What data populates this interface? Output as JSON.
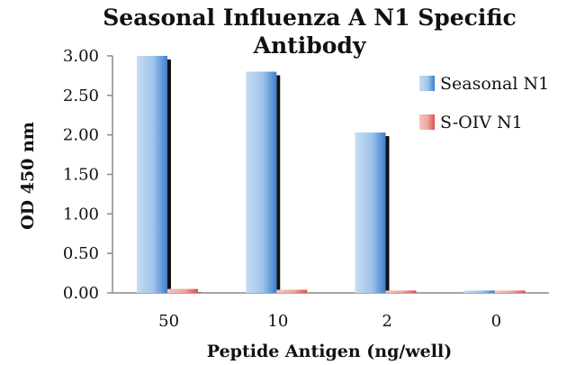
{
  "chart_data": {
    "type": "bar",
    "title": [
      "Seasonal Influenza A N1 Specific",
      "Antibody"
    ],
    "xlabel": "Peptide Antigen (ng/well)",
    "ylabel": "OD 450 nm",
    "categories": [
      "50",
      "10",
      "2",
      "0"
    ],
    "y_ticks": [
      "0.00",
      "0.50",
      "1.00",
      "1.50",
      "2.00",
      "2.50",
      "3.00"
    ],
    "ylim": [
      0,
      3
    ],
    "grid": false,
    "legend_position": "right",
    "series": [
      {
        "name": "Seasonal N1",
        "values": [
          3.0,
          2.8,
          2.03,
          0.03
        ],
        "color": "#9fc4ea",
        "dark_color": "#3d7fcf"
      },
      {
        "name": "S-OIV N1",
        "values": [
          0.05,
          0.04,
          0.03,
          0.03
        ],
        "color": "#f0a3a0",
        "dark_color": "#d9534f"
      }
    ]
  }
}
